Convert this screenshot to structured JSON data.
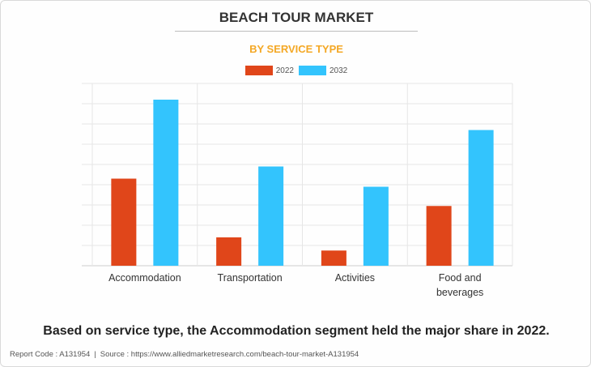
{
  "header": {
    "title": "BEACH TOUR MARKET",
    "subtitle": "BY SERVICE TYPE"
  },
  "colors": {
    "series_2022": "#e0461a",
    "series_2032": "#33c4fd",
    "subtitle": "#f4a825"
  },
  "chart_data": {
    "type": "bar",
    "categories": [
      "Accommodation",
      "Transportation",
      "Activities",
      "Food and beverages"
    ],
    "category_lines": [
      [
        "Accommodation"
      ],
      [
        "Transportation"
      ],
      [
        "Activities"
      ],
      [
        "Food and",
        "beverages"
      ]
    ],
    "series": [
      {
        "name": "2022",
        "values": [
          4.3,
          1.4,
          0.75,
          2.95
        ]
      },
      {
        "name": "2032",
        "values": [
          8.2,
          4.9,
          3.9,
          6.7
        ]
      }
    ],
    "ylim": [
      0,
      9
    ],
    "y_axis_labels_shown": false,
    "grid": true,
    "legend_position": "top-center",
    "title": "",
    "xlabel": "",
    "ylabel": ""
  },
  "caption": "Based on service type, the Accommodation segment held the major share in 2022.",
  "footer": {
    "report_code": "Report Code : A131954",
    "separator": "|",
    "source": "Source : https://www.alliedmarketresearch.com/beach-tour-market-A131954"
  }
}
